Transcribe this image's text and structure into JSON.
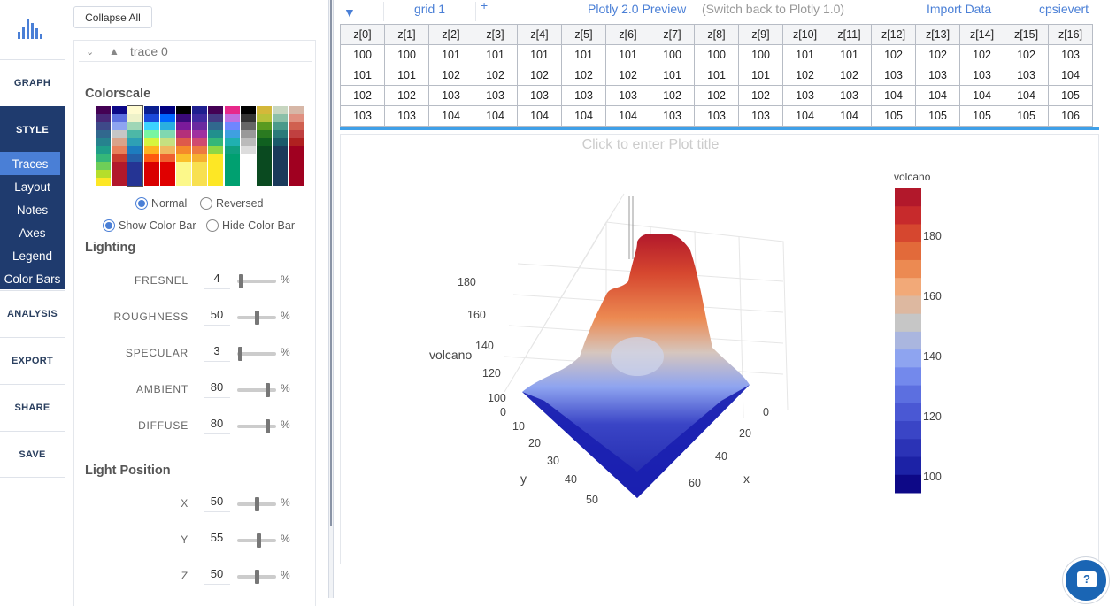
{
  "nav": {
    "graph": "GRAPH",
    "style": "STYLE",
    "analysis": "ANALYSIS",
    "export": "EXPORT",
    "share": "SHARE",
    "save": "SAVE",
    "sub": [
      "Traces",
      "Layout",
      "Notes",
      "Axes",
      "Legend",
      "Color Bars"
    ]
  },
  "panel": {
    "collapse_all": "Collapse All",
    "trace_name": "trace 0",
    "colorscale_title": "Colorscale",
    "palettes": [
      [
        "#440154",
        "#482878",
        "#3e4989",
        "#31688e",
        "#26828e",
        "#1f9e89",
        "#35b779",
        "#6ece58",
        "#b5de2b",
        "#fde725"
      ],
      [
        "#0d0887",
        "#5c6fe0",
        "#8ea4f0",
        "#c6c6c6",
        "#d9a38a",
        "#e8815b",
        "#c93c2d",
        "#b2182b",
        "#b2182b",
        "#b2182b"
      ],
      [
        "#fffbd0",
        "#eef2c9",
        "#9fd6b6",
        "#4db8a7",
        "#2ea0b5",
        "#1d7cbf",
        "#255fa8",
        "#253494",
        "#253494",
        "#253494"
      ],
      [
        "#0a1f8f",
        "#1b49d9",
        "#3cd3ff",
        "#78f5a2",
        "#d6f53e",
        "#ffb320",
        "#ff5a10",
        "#d90000",
        "#d90000",
        "#d90000"
      ],
      [
        "#000080",
        "#0065ff",
        "#2aaee0",
        "#80d8b0",
        "#c6e080",
        "#f0b860",
        "#f06030",
        "#e00000",
        "#e00000",
        "#e00000"
      ],
      [
        "#000000",
        "#3a0a7a",
        "#7a1a9a",
        "#b4307a",
        "#de5a4a",
        "#f58a2a",
        "#fac02a",
        "#fcf88a",
        "#fcf88a",
        "#fcf88a"
      ],
      [
        "#1f1f8f",
        "#3f2aa0",
        "#6a2aa0",
        "#a030a0",
        "#d04a70",
        "#ed7a40",
        "#f5b030",
        "#f8e050",
        "#f8e050",
        "#f8e050"
      ],
      [
        "#440154",
        "#443a83",
        "#31688e",
        "#21908d",
        "#35b779",
        "#8fd744",
        "#fde725",
        "#fde725",
        "#fde725",
        "#fde725"
      ],
      [
        "#e7298a",
        "#c070e0",
        "#6f86ff",
        "#3fa0e0",
        "#20b0b0",
        "#10a080",
        "#00a070",
        "#00a070",
        "#00a070",
        "#00a070"
      ],
      [
        "#000000",
        "#333333",
        "#666666",
        "#999999",
        "#bbbbbb",
        "#dddddd",
        "#ffffff",
        "#ffffff",
        "#ffffff",
        "#ffffff"
      ],
      [
        "#d4b83a",
        "#b8c23a",
        "#5a9a20",
        "#2a7a20",
        "#106020",
        "#0a4a20",
        "#0a4a20",
        "#0a4a20",
        "#0a4a20",
        "#0a4a20"
      ],
      [
        "#c7d6c0",
        "#8cc0a8",
        "#4a9a8a",
        "#2a7a7a",
        "#1a5a6a",
        "#1a3a5a",
        "#1a3a5a",
        "#1a3a5a",
        "#1a3a5a",
        "#1a3a5a"
      ],
      [
        "#d7b7a7",
        "#e09080",
        "#d06050",
        "#c04040",
        "#b02020",
        "#a00020",
        "#a00020",
        "#a00020",
        "#a00020",
        "#a00020"
      ]
    ],
    "normal": "Normal",
    "reversed": "Reversed",
    "show_color_bar": "Show Color Bar",
    "hide_color_bar": "Hide Color Bar",
    "lighting_title": "Lighting",
    "lighting": [
      {
        "label": "FRESNEL",
        "value": "4",
        "pct": 0.04
      },
      {
        "label": "ROUGHNESS",
        "value": "50",
        "pct": 0.5
      },
      {
        "label": "SPECULAR",
        "value": "3",
        "pct": 0.03
      },
      {
        "label": "AMBIENT",
        "value": "80",
        "pct": 0.8
      },
      {
        "label": "DIFFUSE",
        "value": "80",
        "pct": 0.8
      }
    ],
    "light_position_title": "Light Position",
    "light_position": [
      {
        "label": "X",
        "value": "50",
        "pct": 0.5
      },
      {
        "label": "Y",
        "value": "55",
        "pct": 0.55
      },
      {
        "label": "Z",
        "value": "50",
        "pct": 0.5
      }
    ],
    "percent": "%"
  },
  "topbar": {
    "grid_tab": "grid 1",
    "plotly_preview": "Plotly 2.0 Preview",
    "switch_back": "(Switch back to Plotly 1.0)",
    "import_data": "Import Data",
    "user": "cpsievert"
  },
  "grid": {
    "headers": [
      "z[0]",
      "z[1]",
      "z[2]",
      "z[3]",
      "z[4]",
      "z[5]",
      "z[6]",
      "z[7]",
      "z[8]",
      "z[9]",
      "z[10]",
      "z[11]",
      "z[12]",
      "z[13]",
      "z[14]",
      "z[15]",
      "z[16]"
    ],
    "rows": [
      [
        "100",
        "100",
        "101",
        "101",
        "101",
        "101",
        "101",
        "100",
        "100",
        "100",
        "101",
        "101",
        "102",
        "102",
        "102",
        "102",
        "103"
      ],
      [
        "101",
        "101",
        "102",
        "102",
        "102",
        "102",
        "102",
        "101",
        "101",
        "101",
        "102",
        "102",
        "103",
        "103",
        "103",
        "103",
        "104"
      ],
      [
        "102",
        "102",
        "103",
        "103",
        "103",
        "103",
        "103",
        "102",
        "102",
        "102",
        "103",
        "103",
        "104",
        "104",
        "104",
        "104",
        "105"
      ],
      [
        "103",
        "103",
        "104",
        "104",
        "104",
        "104",
        "104",
        "103",
        "103",
        "103",
        "104",
        "104",
        "105",
        "105",
        "105",
        "105",
        "106"
      ]
    ]
  },
  "plot": {
    "title_placeholder": "Click to enter Plot title",
    "z_label": "volcano",
    "x_label": "x",
    "y_label": "y",
    "z_ticks": [
      "180",
      "160",
      "140",
      "120",
      "100"
    ],
    "x_ticks": [
      "0",
      "20",
      "40",
      "60"
    ],
    "y_ticks": [
      "0",
      "10",
      "20",
      "30",
      "40",
      "50"
    ],
    "colorbar_title": "volcano",
    "colorbar_ticks": [
      "180",
      "160",
      "140",
      "120",
      "100"
    ],
    "colorbar_colors": [
      "#b2182b",
      "#c72a2c",
      "#d6472f",
      "#e26a3a",
      "#ec8a52",
      "#f2a978",
      "#ddb8a0",
      "#c6c6c6",
      "#aab6df",
      "#8ea4f0",
      "#7389ec",
      "#5c6fe0",
      "#4a58d4",
      "#3a45c6",
      "#2b33b6",
      "#1c22a6",
      "#0d0887"
    ],
    "help_glyph": "?"
  }
}
